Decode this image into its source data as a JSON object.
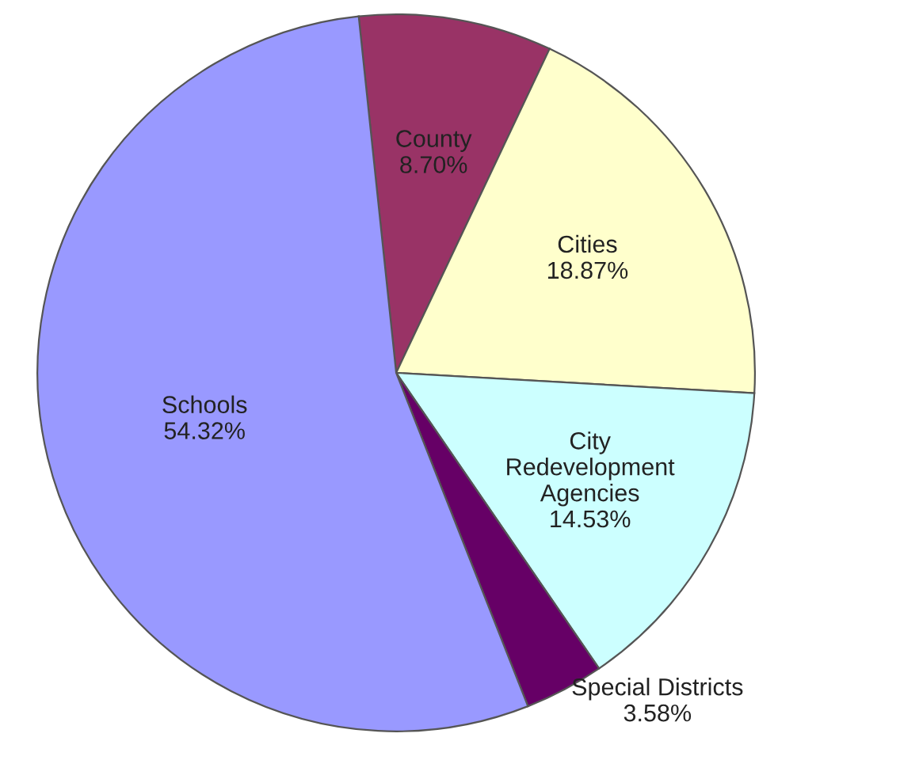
{
  "chart_data": {
    "type": "pie",
    "categories": [
      "County",
      "Cities",
      "City Redevelopment Agencies",
      "Special Districts",
      "Schools"
    ],
    "values": [
      8.7,
      18.87,
      14.53,
      3.58,
      54.32
    ],
    "value_labels": [
      "8.70%",
      "18.87%",
      "14.53%",
      "3.58%",
      "54.32%"
    ],
    "colors": [
      "#993366",
      "#ffffcc",
      "#ccffff",
      "#660066",
      "#9999ff"
    ],
    "legend": false
  }
}
